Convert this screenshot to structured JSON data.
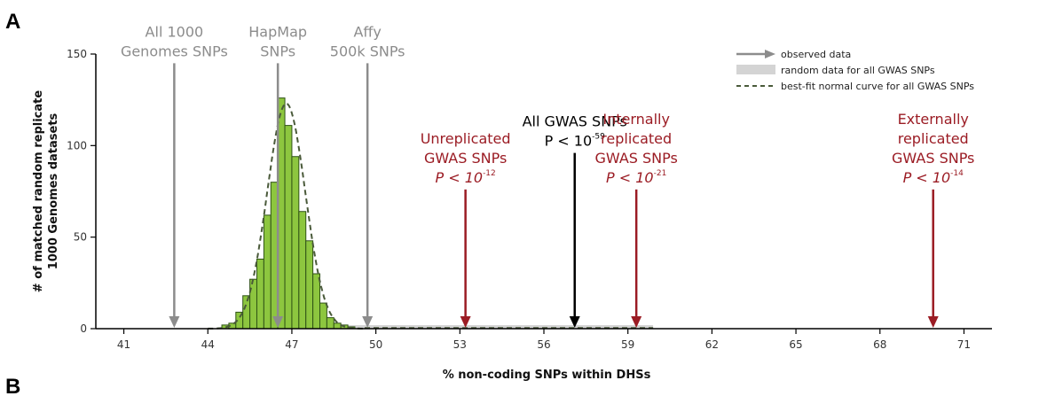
{
  "panel_labels": {
    "a": "A",
    "b": "B"
  },
  "chart_data": {
    "type": "bar",
    "title": "",
    "xlabel": "% non-coding SNPs within DHSs",
    "ylabel_line1": "# of matched random replicate",
    "ylabel_line2": "1000 Genomes datasets",
    "xlim": [
      40,
      72
    ],
    "ylim": [
      0,
      150
    ],
    "x_ticks": [
      41,
      44,
      47,
      50,
      53,
      56,
      59,
      62,
      65,
      68,
      71
    ],
    "y_ticks": [
      0,
      50,
      100,
      150
    ],
    "histogram": {
      "bin_width": 0.25,
      "bin_starts": [
        44.5,
        44.75,
        45.0,
        45.25,
        45.5,
        45.75,
        46.0,
        46.25,
        46.5,
        46.75,
        47.0,
        47.25,
        47.5,
        47.75,
        48.0,
        48.25,
        48.5,
        48.75,
        49.0
      ],
      "counts": [
        2,
        3,
        9,
        18,
        27,
        38,
        62,
        80,
        126,
        111,
        94,
        64,
        48,
        30,
        14,
        6,
        3,
        2,
        1
      ],
      "fill_color": "#8dc63f",
      "stroke_color": "#2f5216"
    },
    "normal_curve": {
      "mean": 46.8,
      "sd": 0.68,
      "peak": 123,
      "color": "#4a5a3a"
    },
    "gray_band": {
      "x": [
        44.5,
        59.9
      ],
      "color": "#d4d4d4"
    },
    "annotations": [
      {
        "lines": [
          "All 1000",
          "Genomes SNPs"
        ],
        "x": 42.8,
        "color_class": "gray",
        "arrow_color": "#8c8c8c",
        "arrow_top_value": 145
      },
      {
        "lines": [
          "HapMap",
          "SNPs"
        ],
        "x": 46.5,
        "color_class": "gray",
        "arrow_color": "#8c8c8c",
        "arrow_top_value": 145
      },
      {
        "lines": [
          "Affy",
          "500k SNPs"
        ],
        "x": 49.7,
        "color_class": "gray",
        "arrow_color": "#8c8c8c",
        "arrow_top_value": 145
      },
      {
        "lines": [
          "All GWAS SNPs"
        ],
        "p_base": "P < 10",
        "p_exp": "-59",
        "p_italic": false,
        "x": 57.1,
        "color_class": "blk",
        "arrow_color": "#000000",
        "arrow_top_value": 96
      },
      {
        "lines": [
          "Unreplicated",
          "GWAS SNPs"
        ],
        "p_base": "P < 10",
        "p_exp": "-12",
        "p_italic": true,
        "x": 53.2,
        "color_class": "red",
        "arrow_color": "#9b1c24",
        "arrow_top_value": 76
      },
      {
        "lines": [
          "Internally",
          "replicated",
          "GWAS SNPs"
        ],
        "p_base": "P < 10",
        "p_exp": "-21",
        "p_italic": true,
        "x": 59.3,
        "color_class": "red",
        "arrow_color": "#9b1c24",
        "arrow_top_value": 76
      },
      {
        "lines": [
          "Externally",
          "replicated",
          "GWAS SNPs"
        ],
        "p_base": "P < 10",
        "p_exp": "-14",
        "p_italic": true,
        "x": 69.9,
        "color_class": "red",
        "arrow_color": "#9b1c24",
        "arrow_top_value": 76
      }
    ],
    "legend": {
      "placement": "top-right",
      "entries": [
        {
          "kind": "arrow",
          "label": "observed data",
          "color": "#8c8c8c"
        },
        {
          "kind": "band",
          "label": "random data for all GWAS SNPs",
          "color": "#d4d4d4"
        },
        {
          "kind": "dash",
          "label": "best-fit normal curve for all GWAS SNPs",
          "color": "#4a5a3a"
        }
      ]
    }
  }
}
